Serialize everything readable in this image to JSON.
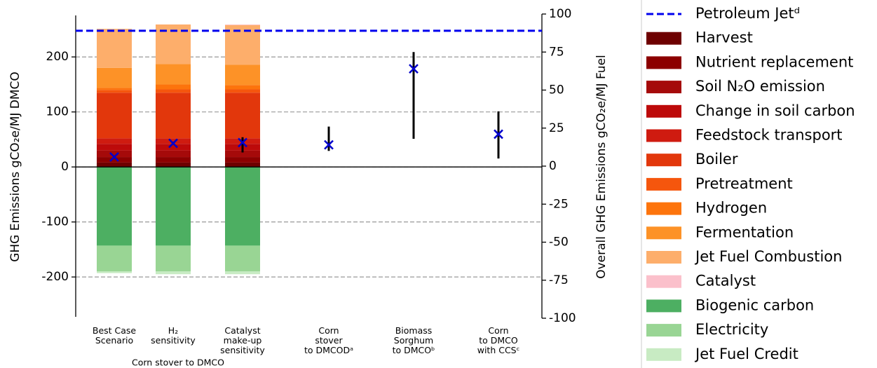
{
  "chart_data": {
    "type": "stacked-bar",
    "categories": [
      [
        "Best Case",
        "Scenario"
      ],
      [
        "H₂",
        "sensitivity"
      ],
      [
        "Catalyst",
        "make-up",
        "sensitivity"
      ],
      [
        "Corn",
        "stover",
        "to DMCODᵃ"
      ],
      [
        "Biomass",
        "Sorghum",
        "to DMCOᵇ"
      ],
      [
        "Corn",
        "to DMCO",
        "with CCSᶜ"
      ]
    ],
    "group_label": "Corn stover to DMCO",
    "ylabel": "GHG Emissions gCO₂e/MJ DMCO",
    "y2label": "Overall GHG Emissions gCO₂e/MJ Fuel",
    "ylim": [
      -275,
      278
    ],
    "yticks": [
      -200,
      -100,
      0,
      100,
      200
    ],
    "y2lim": [
      -100,
      100
    ],
    "y2ticks": [
      -100,
      -75,
      -50,
      -25,
      0,
      25,
      50,
      75,
      100
    ],
    "grid": true,
    "reference": {
      "name": "Petroleum Jetᵈ",
      "value": 89,
      "axis": "y2",
      "color": "#0000ee"
    },
    "series": [
      {
        "name": "Harvest",
        "color": "#6e0000",
        "values": [
          8,
          8,
          8,
          null,
          null,
          null
        ]
      },
      {
        "name": "Nutrient replacement",
        "color": "#8c0000",
        "values": [
          10,
          10,
          10,
          null,
          null,
          null
        ]
      },
      {
        "name": "Soil N₂O emission",
        "color": "#a50a0a",
        "values": [
          12,
          12,
          12,
          null,
          null,
          null
        ]
      },
      {
        "name": "Change in soil carbon",
        "color": "#bd0a0a",
        "values": [
          12,
          12,
          12,
          null,
          null,
          null
        ]
      },
      {
        "name": "Feedstock transport",
        "color": "#cf1b10",
        "values": [
          10,
          10,
          10,
          null,
          null,
          null
        ]
      },
      {
        "name": "Boiler",
        "color": "#e2370c",
        "values": [
          83,
          83,
          83,
          null,
          null,
          null
        ]
      },
      {
        "name": "Pretreatment",
        "color": "#f5560d",
        "values": [
          5,
          6,
          6,
          null,
          null,
          null
        ]
      },
      {
        "name": "Hydrogen",
        "color": "#fd740c",
        "values": [
          4,
          9,
          8,
          null,
          null,
          null
        ]
      },
      {
        "name": "Fermentation",
        "color": "#fd9227",
        "values": [
          36,
          37,
          37,
          null,
          null,
          null
        ]
      },
      {
        "name": "Jet Fuel Combustion",
        "color": "#fdae6b",
        "values": [
          71,
          72,
          72,
          null,
          null,
          null
        ]
      },
      {
        "name": "Catalyst",
        "color": "#fbc0cb",
        "values": [
          0,
          0,
          1,
          null,
          null,
          null
        ]
      },
      {
        "name": "Biogenic carbon",
        "color": "#4daf62",
        "values": [
          -143,
          -143,
          -143,
          null,
          null,
          null
        ]
      },
      {
        "name": "Electricity",
        "color": "#99d594",
        "values": [
          -47,
          -47,
          -47,
          null,
          null,
          null
        ]
      },
      {
        "name": "Jet Fuel Credit",
        "color": "#c8ebc3",
        "values": [
          -3,
          -5,
          -5,
          null,
          null,
          null
        ]
      }
    ],
    "markers": {
      "axis": "y2",
      "color": "#0000cc",
      "values": [
        6,
        15,
        15.5,
        14,
        64,
        21
      ],
      "lower": [
        null,
        null,
        9,
        10,
        18,
        5
      ],
      "upper": [
        null,
        null,
        19,
        26,
        75,
        36
      ]
    }
  }
}
